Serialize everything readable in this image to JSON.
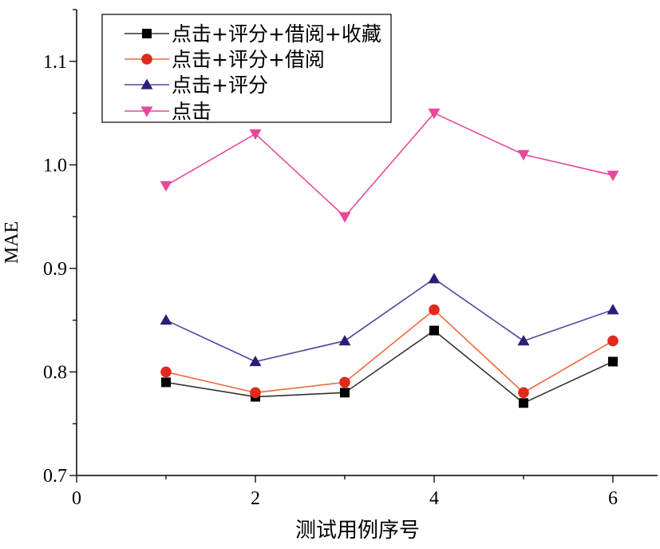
{
  "chart_data": {
    "type": "line",
    "title": "",
    "xlabel": "测试用例序号",
    "ylabel": "MAE",
    "xlim": [
      0,
      6.5
    ],
    "ylim": [
      0.7,
      1.15
    ],
    "xticks": [
      0,
      2,
      4,
      6
    ],
    "yticks": [
      0.7,
      0.8,
      0.9,
      1.0,
      1.1
    ],
    "xtick_labels": [
      "0",
      "2",
      "4",
      "6"
    ],
    "ytick_labels": [
      "0.7",
      "0.8",
      "0.9",
      "1.0",
      "1.1"
    ],
    "legend_position": "top-left",
    "grid": false,
    "x": [
      1,
      2,
      3,
      4,
      5,
      6
    ],
    "series": [
      {
        "name": "点击+评分+借阅+收藏",
        "marker": "square",
        "line_color": "#333333",
        "marker_color": "#000000",
        "values": [
          0.79,
          0.776,
          0.78,
          0.84,
          0.77,
          0.81
        ]
      },
      {
        "name": "点击+评分+借阅",
        "marker": "circle",
        "line_color": "#f06a3c",
        "marker_color": "#e02a1c",
        "values": [
          0.8,
          0.78,
          0.79,
          0.86,
          0.78,
          0.83
        ]
      },
      {
        "name": "点击+评分",
        "marker": "triangle-up",
        "line_color": "#5c3f9e",
        "marker_color": "#2f1b78",
        "values": [
          0.85,
          0.81,
          0.83,
          0.89,
          0.83,
          0.86
        ]
      },
      {
        "name": "点击",
        "marker": "triangle-down",
        "line_color": "#e8489a",
        "marker_color": "#e8489a",
        "values": [
          0.98,
          1.03,
          0.95,
          1.05,
          1.01,
          0.99
        ]
      }
    ]
  }
}
